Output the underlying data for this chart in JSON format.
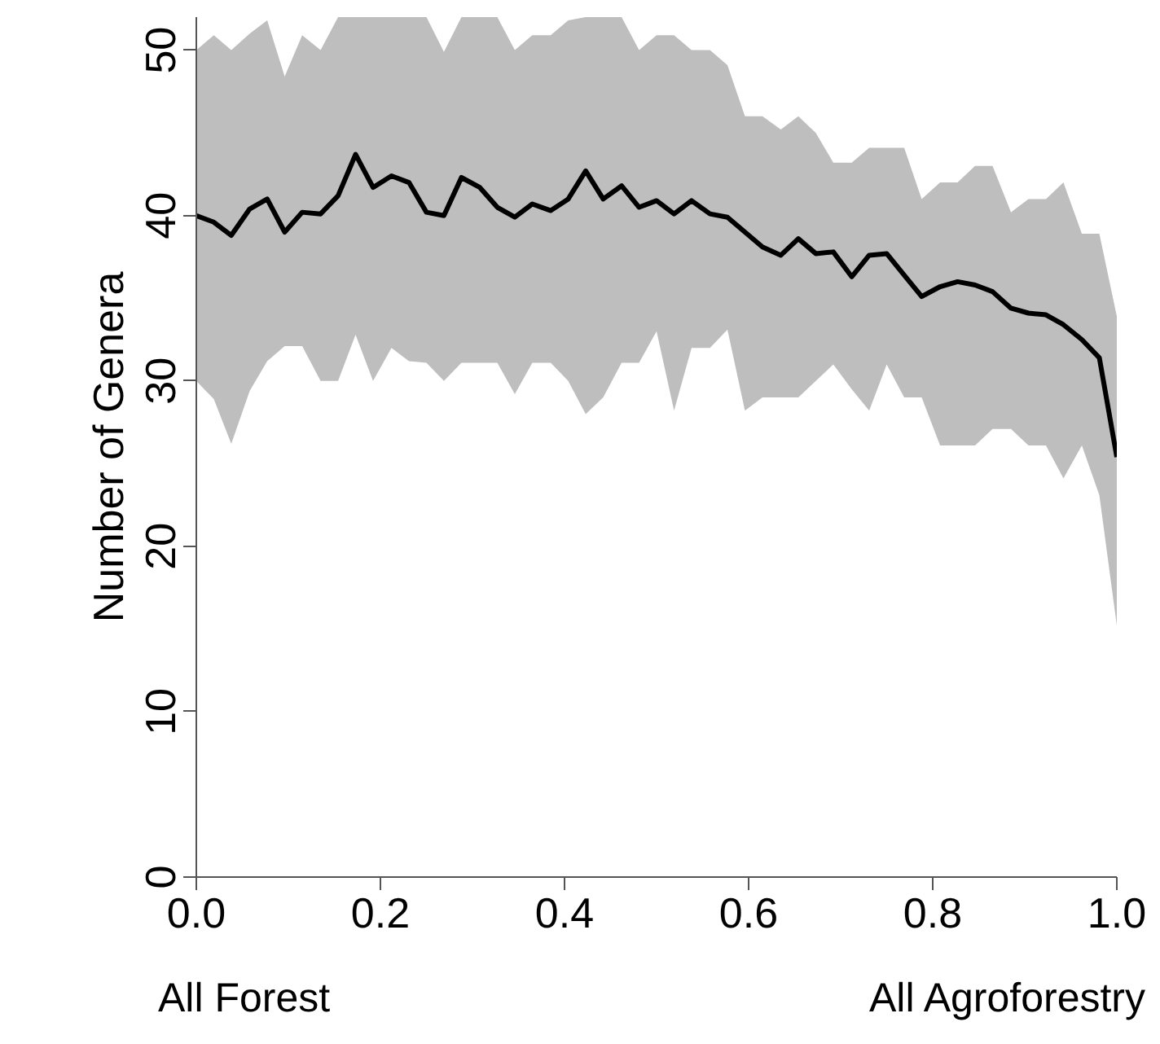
{
  "chart_data": {
    "type": "line",
    "ylabel": "Number of Genera",
    "x": [
      0,
      0.019,
      0.038,
      0.058,
      0.077,
      0.096,
      0.115,
      0.135,
      0.154,
      0.173,
      0.192,
      0.212,
      0.231,
      0.25,
      0.269,
      0.288,
      0.308,
      0.327,
      0.346,
      0.365,
      0.385,
      0.404,
      0.423,
      0.442,
      0.462,
      0.481,
      0.5,
      0.519,
      0.538,
      0.558,
      0.577,
      0.596,
      0.615,
      0.635,
      0.654,
      0.673,
      0.692,
      0.712,
      0.731,
      0.75,
      0.769,
      0.788,
      0.808,
      0.827,
      0.846,
      0.865,
      0.885,
      0.904,
      0.923,
      0.942,
      0.962,
      0.981,
      1
    ],
    "series": [
      {
        "color": "#000000",
        "values": [
          40.0,
          39.6,
          38.8,
          40.4,
          41.0,
          39.0,
          40.2,
          40.1,
          41.2,
          43.7,
          41.7,
          42.4,
          42.0,
          40.2,
          40.0,
          42.3,
          41.7,
          40.5,
          39.9,
          40.7,
          40.3,
          41.0,
          42.7,
          41.0,
          41.8,
          40.5,
          40.9,
          40.1,
          40.9,
          40.1,
          39.9,
          39.0,
          38.1,
          37.6,
          38.6,
          37.7,
          37.8,
          36.3,
          37.6,
          37.7,
          36.4,
          35.1,
          35.7,
          36.0,
          35.8,
          35.4,
          34.4,
          34.1,
          34.0,
          33.4,
          32.5,
          31.4,
          25.4
        ],
        "lower": [
          30.0,
          28.9,
          26.2,
          29.4,
          31.2,
          32.1,
          32.1,
          30.0,
          30.0,
          32.8,
          30.0,
          32.0,
          31.2,
          31.1,
          30.0,
          31.1,
          31.1,
          31.1,
          29.2,
          31.1,
          31.1,
          30.0,
          28.0,
          29.0,
          31.1,
          31.1,
          33.0,
          28.2,
          32.0,
          32.0,
          33.1,
          28.2,
          29.0,
          29.0,
          29.0,
          30.0,
          31.0,
          29.5,
          28.2,
          31.0,
          29.0,
          29.0,
          26.1,
          26.1,
          26.1,
          27.1,
          27.1,
          26.1,
          26.1,
          24.1,
          26.1,
          23.1,
          15.2
        ],
        "upper": [
          50.0,
          50.9,
          50.0,
          51.0,
          51.8,
          48.4,
          50.9,
          50.0,
          52,
          52,
          52,
          52,
          52,
          52,
          49.9,
          52,
          52,
          52,
          50.0,
          50.9,
          50.9,
          51.8,
          52,
          52,
          52,
          50.0,
          50.9,
          50.9,
          50.0,
          50.0,
          49.1,
          46.0,
          46.0,
          45.2,
          46.0,
          45.0,
          43.2,
          43.2,
          44.1,
          44.1,
          44.1,
          41.0,
          42.0,
          42.0,
          43.0,
          43.0,
          40.2,
          41.0,
          41.0,
          42.0,
          38.9,
          38.9,
          33.9
        ]
      }
    ],
    "xlim": [
      0,
      1
    ],
    "ylim": [
      0,
      52
    ],
    "xticks": [
      {
        "value": 0,
        "label": "0.0"
      },
      {
        "value": 0.2,
        "label": "0.2"
      },
      {
        "value": 0.4,
        "label": "0.4"
      },
      {
        "value": 0.6,
        "label": "0.6"
      },
      {
        "value": 0.8,
        "label": "0.8"
      },
      {
        "value": 1,
        "label": "1.0"
      }
    ],
    "yticks": [
      0,
      10,
      20,
      30,
      40,
      50
    ],
    "annotations": [
      "All Forest",
      "All Agroforestry"
    ],
    "grid": false,
    "marker": "none",
    "line_style": "solid"
  }
}
